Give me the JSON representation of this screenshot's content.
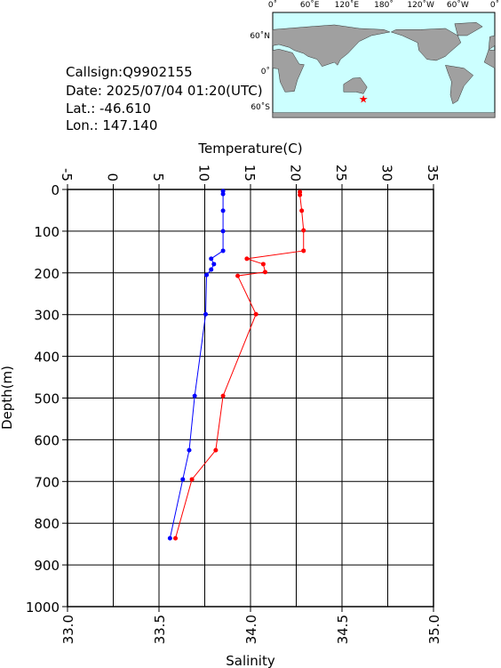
{
  "info": {
    "callsign": "Callsign:Q9902155",
    "date": "Date:  2025/07/04 01:20(UTC)",
    "lat": "Lat.:  -46.610",
    "lon": "Lon.:  147.140"
  },
  "map": {
    "lon_labels": [
      "0˚",
      "60˚E",
      "120˚E",
      "180˚",
      "120˚W",
      "60˚W",
      "0˚"
    ],
    "lat_labels": [
      "60˚N",
      "0˚",
      "60˚S"
    ]
  },
  "chart_data": {
    "type": "line",
    "x_label_top": "Temperature(C)",
    "x_label_bottom": "Salinity",
    "y_label": "Depth(m)",
    "xlim": [
      -5,
      35
    ],
    "xticks": [
      -5,
      0,
      5,
      10,
      15,
      20,
      25,
      30,
      35
    ],
    "x2lim": [
      33.0,
      35.0
    ],
    "x2ticks": [
      {
        "value": 33.0,
        "label": "33.0"
      },
      {
        "value": 33.5,
        "label": "33.5"
      },
      {
        "value": 34.0,
        "label": "34.0"
      },
      {
        "value": 34.5,
        "label": "34.5"
      },
      {
        "value": 35.0,
        "label": "35.0"
      }
    ],
    "ylim": [
      0,
      1000
    ],
    "y_inverted": true,
    "yticks": [
      0,
      100,
      200,
      300,
      400,
      500,
      600,
      700,
      800,
      900,
      1000
    ],
    "grid": true,
    "series": [
      {
        "name": "Temperature",
        "color": "#0000ff",
        "axis": "x",
        "depth": [
          4,
          11,
          51,
          100,
          147,
          166,
          179,
          192,
          205,
          299,
          495,
          625,
          695,
          836
        ],
        "values": [
          12.0,
          12.0,
          12.0,
          12.0,
          12.0,
          10.7,
          11.0,
          10.7,
          10.2,
          10.1,
          8.9,
          8.3,
          7.6,
          6.2
        ]
      },
      {
        "name": "Salinity",
        "color": "#ff0000",
        "axis": "x2",
        "depth": [
          6,
          13,
          51,
          98,
          147,
          166,
          179,
          198,
          207,
          299,
          495,
          625,
          695,
          836
        ],
        "values": [
          34.27,
          34.27,
          34.28,
          34.29,
          34.29,
          33.98,
          34.07,
          34.08,
          33.93,
          34.03,
          33.85,
          33.81,
          33.68,
          33.59
        ]
      }
    ]
  }
}
